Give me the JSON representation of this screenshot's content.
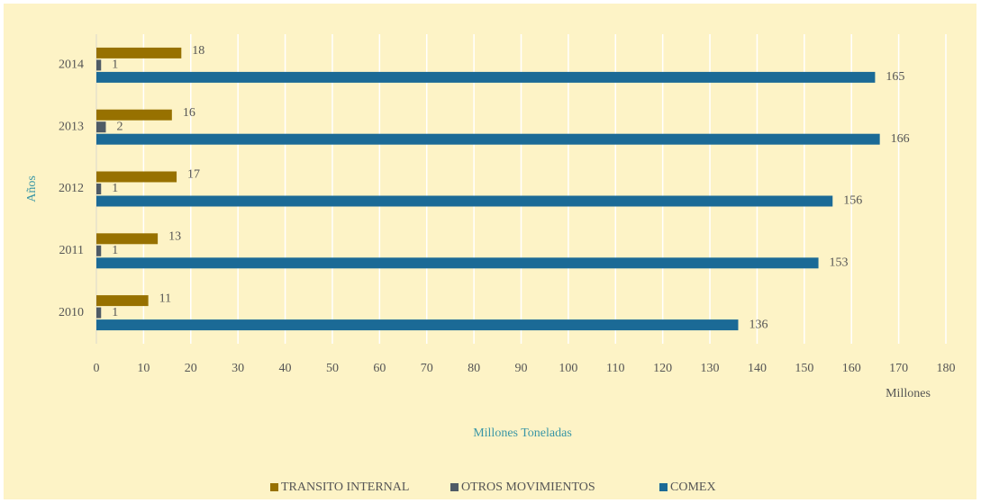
{
  "chart_data": {
    "type": "bar",
    "orientation": "horizontal",
    "categories": [
      "2010",
      "2011",
      "2012",
      "2013",
      "2014"
    ],
    "series": [
      {
        "name": "TRANSITO INTERNAL",
        "color": "#977100",
        "values": [
          11,
          13,
          17,
          16,
          18
        ]
      },
      {
        "name": "OTROS MOVIMIENTOS",
        "color": "#4f5b66",
        "values": [
          1,
          1,
          1,
          2,
          1
        ]
      },
      {
        "name": "COMEX",
        "color": "#1b6a96",
        "values": [
          136,
          153,
          156,
          166,
          165
        ]
      }
    ],
    "xlim": [
      0,
      180
    ],
    "xticks": [
      0,
      10,
      20,
      30,
      40,
      50,
      60,
      70,
      80,
      90,
      100,
      110,
      120,
      130,
      140,
      150,
      160,
      170,
      180
    ],
    "ylabel": "Años",
    "xlabel": "Millones Toneladas",
    "x_unit": "Millones",
    "grid": true,
    "legend": "bottom"
  }
}
